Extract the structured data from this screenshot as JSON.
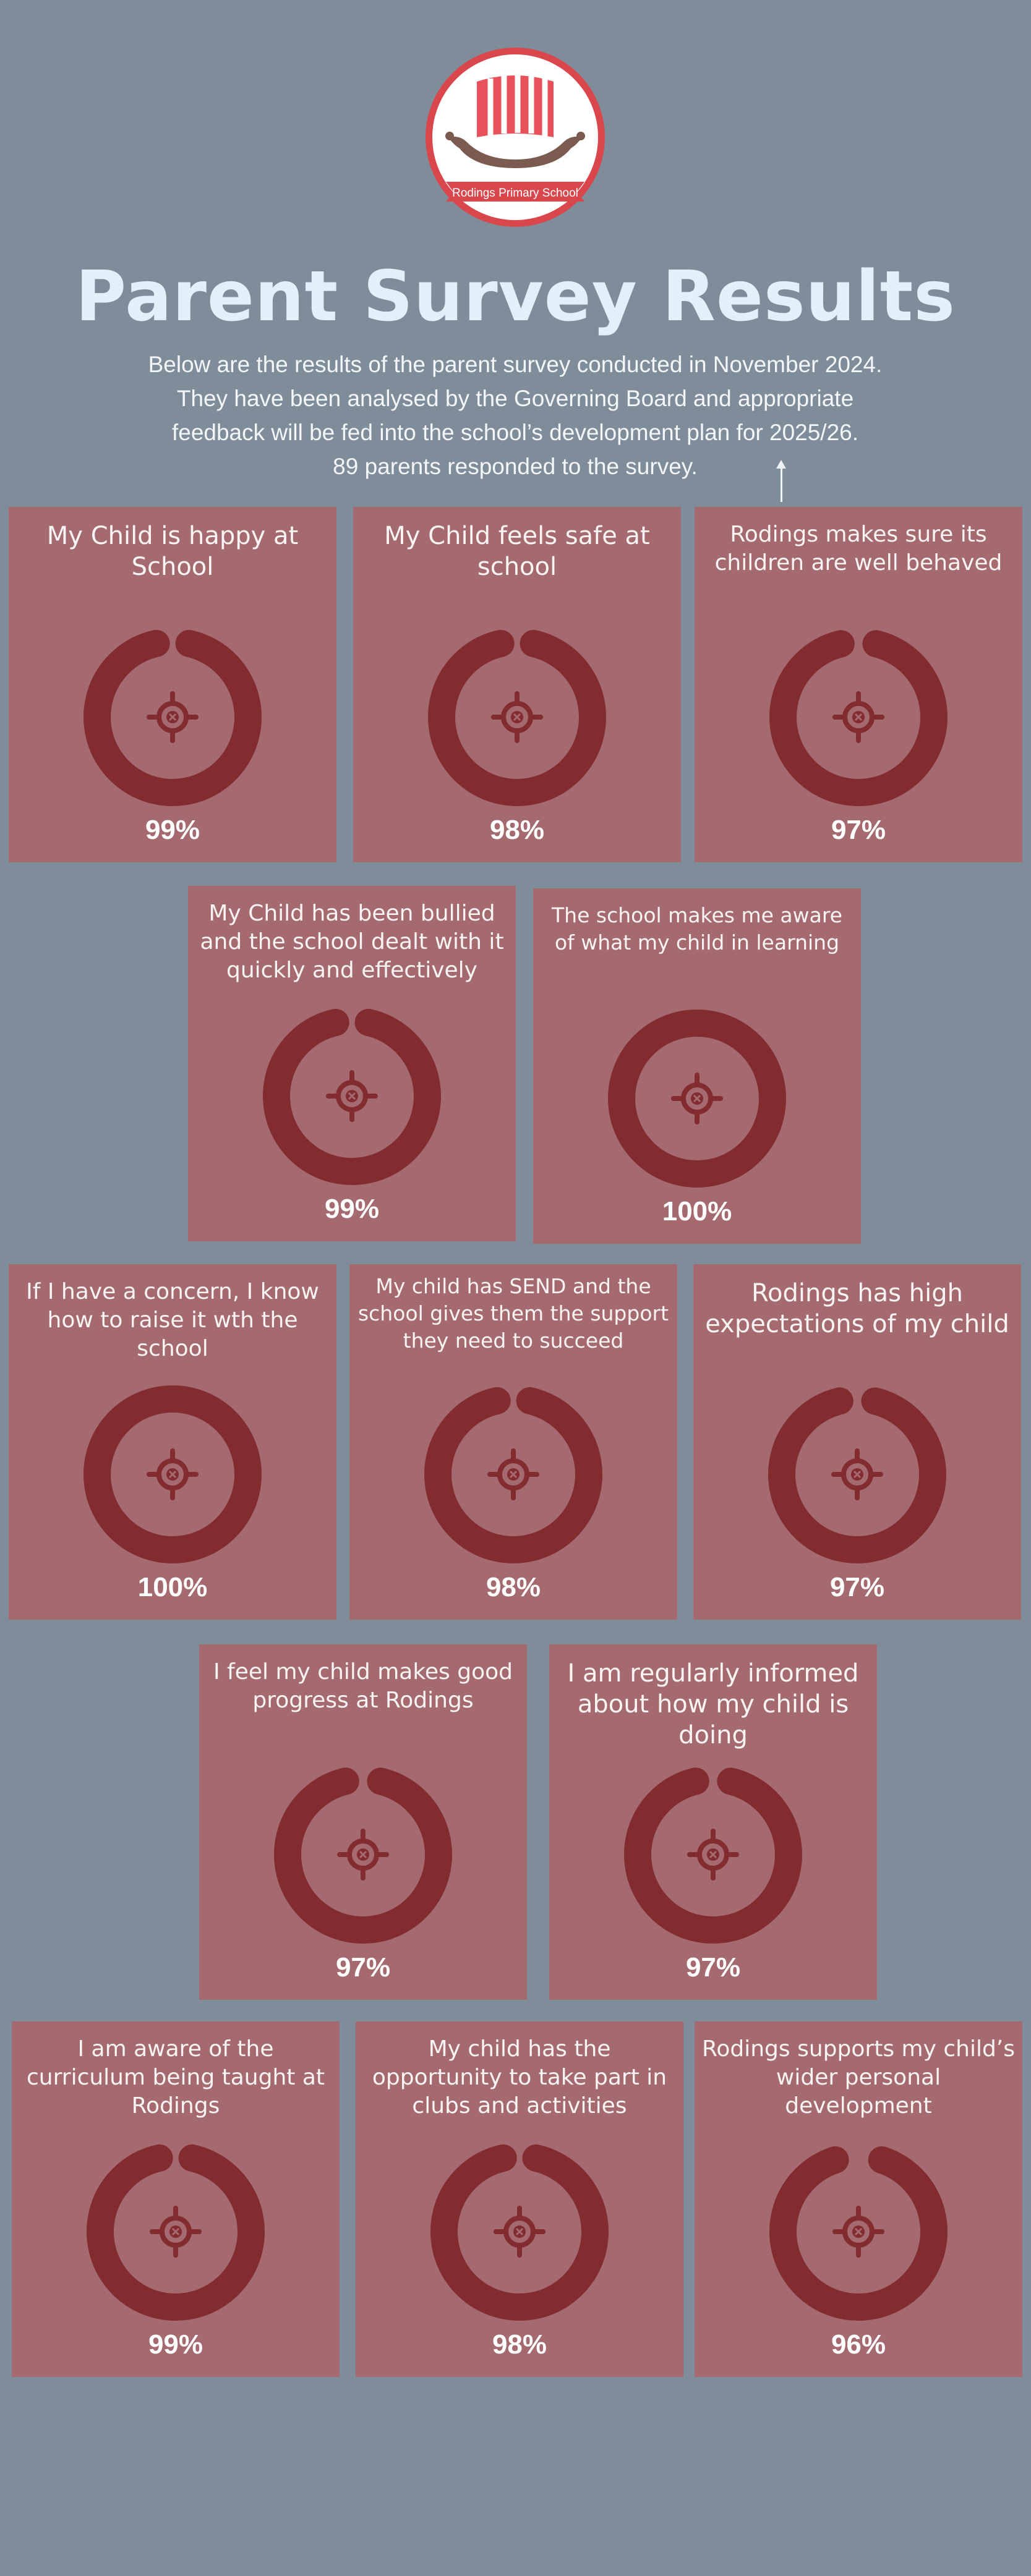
{
  "logo": {
    "school_name": "Rodings Primary School",
    "icon": "viking-ship-icon"
  },
  "title": "Parent Survey Results",
  "intro": {
    "lines": [
      "Below are the results of the parent survey conducted in November 2024.",
      "They have been analysed by the Governing Board and appropriate",
      "feedback will be fed into the school’s development plan for 2025/26.",
      "89 parents responded to the survey."
    ]
  },
  "colors": {
    "background": "#7f8c9a",
    "card": "#a46a6f",
    "ring": "#832c30",
    "title": "#e3f0fb"
  },
  "cards": [
    {
      "question": "My Child is happy at School",
      "percent": 99,
      "label": "99%"
    },
    {
      "question": "My Child feels safe at school",
      "percent": 98,
      "label": "98%"
    },
    {
      "question": "Rodings makes sure its children are well behaved",
      "percent": 97,
      "label": "97%"
    },
    {
      "question": "My Child has been bullied and the school dealt with it quickly and effectively",
      "percent": 99,
      "label": "99%"
    },
    {
      "question": "The school makes me aware of what my child in learning",
      "percent": 100,
      "label": "100%"
    },
    {
      "question": "If I have a concern, I know how to raise it wth the school",
      "percent": 100,
      "label": "100%"
    },
    {
      "question": "My child has SEND and the school gives them the support they need to succeed",
      "percent": 98,
      "label": "98%"
    },
    {
      "question": "Rodings has high expectations of my child",
      "percent": 97,
      "label": "97%"
    },
    {
      "question": "I feel my child makes good progress at Rodings",
      "percent": 97,
      "label": "97%"
    },
    {
      "question": "I am regularly informed about how my child is doing",
      "percent": 97,
      "label": "97%"
    },
    {
      "question": "I am aware of the curriculum being taught at Rodings",
      "percent": 99,
      "label": "99%"
    },
    {
      "question": "My child has the opportunity to take part in clubs and activities",
      "percent": 98,
      "label": "98%"
    },
    {
      "question": "Rodings supports my child’s wider personal development",
      "percent": 96,
      "label": "96%"
    }
  ]
}
